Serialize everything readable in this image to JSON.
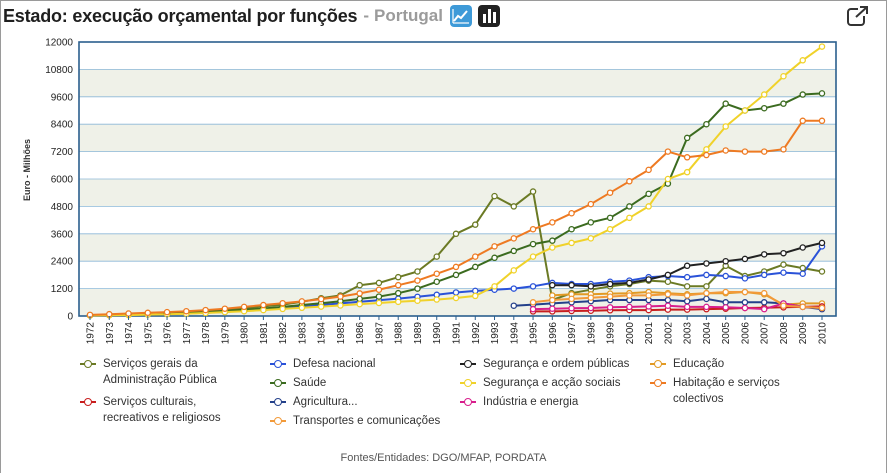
{
  "header": {
    "title": "Estado: execução orçamental por funções",
    "separator": "-",
    "subtitle": "Portugal",
    "line_chart_icon": "line-chart-icon",
    "bar_chart_icon": "bar-chart-icon",
    "expand_icon": "expand-icon"
  },
  "source": "Fontes/Entidades: DGO/MFAP, PORDATA",
  "chart_data": {
    "type": "line",
    "title": "Estado: execução orçamental por funções",
    "ylabel": "Euro - Milhões",
    "xlabel": "",
    "ylim": [
      0,
      12000
    ],
    "yticks": [
      0,
      1200,
      2400,
      3600,
      4800,
      6000,
      7200,
      8400,
      9600,
      10800,
      12000
    ],
    "categories": [
      "1972",
      "1973",
      "1974",
      "1975",
      "1976",
      "1977",
      "1978",
      "1979",
      "1980",
      "1981",
      "1982",
      "1983",
      "1984",
      "1985",
      "1986",
      "1987",
      "1988",
      "1989",
      "1990",
      "1991",
      "1992",
      "1993",
      "1994",
      "1995",
      "1996",
      "1997",
      "1998",
      "1999",
      "2000",
      "2001",
      "2002",
      "2003",
      "2004",
      "2005",
      "2006",
      "2007",
      "2008",
      "2009",
      "2010"
    ],
    "series": [
      {
        "name": "Serviços gerais da Administração Pública",
        "color": "#6b7a24",
        "values": [
          30,
          50,
          70,
          90,
          110,
          150,
          190,
          250,
          330,
          420,
          500,
          620,
          780,
          900,
          1350,
          1450,
          1700,
          1950,
          2600,
          3600,
          4000,
          5250,
          4800,
          5450,
          700,
          1000,
          1150,
          1300,
          1400,
          1550,
          1500,
          1300,
          1300,
          2200,
          1750,
          1950,
          2250,
          2100,
          1950
        ]
      },
      {
        "name": "Defesa nacional",
        "color": "#2a52d8",
        "values": [
          30,
          40,
          55,
          70,
          90,
          110,
          140,
          180,
          230,
          290,
          350,
          410,
          480,
          550,
          620,
          690,
          760,
          840,
          930,
          1030,
          1100,
          1150,
          1200,
          1300,
          1450,
          1400,
          1400,
          1500,
          1550,
          1700,
          1750,
          1700,
          1800,
          1750,
          1650,
          1800,
          1900,
          1850,
          3050
        ]
      },
      {
        "name": "Segurança e ordem públicas",
        "color": "#222222",
        "values": [
          null,
          null,
          null,
          null,
          null,
          null,
          null,
          null,
          null,
          null,
          null,
          null,
          null,
          null,
          null,
          null,
          null,
          null,
          null,
          null,
          null,
          null,
          null,
          null,
          1350,
          1350,
          1300,
          1400,
          1450,
          1600,
          1800,
          2200,
          2300,
          2400,
          2500,
          2700,
          2750,
          3000,
          3200
        ]
      },
      {
        "name": "Educação",
        "color": "#e29a24",
        "values": [
          null,
          null,
          null,
          null,
          null,
          null,
          null,
          null,
          null,
          null,
          null,
          null,
          null,
          null,
          null,
          null,
          null,
          null,
          null,
          null,
          null,
          null,
          null,
          null,
          900,
          950,
          950,
          980,
          1000,
          1050,
          1000,
          950,
          1000,
          1000,
          1050,
          950,
          500,
          550,
          550
        ]
      },
      {
        "name": "Saúde",
        "color": "#3b6b1f",
        "values": [
          30,
          40,
          60,
          80,
          100,
          130,
          170,
          220,
          270,
          330,
          400,
          480,
          560,
          650,
          750,
          850,
          1000,
          1200,
          1500,
          1800,
          2150,
          2550,
          2850,
          3150,
          3300,
          3800,
          4100,
          4300,
          4800,
          5350,
          5800,
          7800,
          8400,
          9300,
          9000,
          9100,
          9300,
          9700,
          9750
        ]
      },
      {
        "name": "Segurança e acção sociais",
        "color": "#f0d22a",
        "values": [
          20,
          30,
          40,
          60,
          80,
          100,
          130,
          170,
          210,
          260,
          310,
          360,
          410,
          460,
          520,
          570,
          620,
          670,
          720,
          790,
          880,
          1300,
          2000,
          2600,
          3000,
          3200,
          3400,
          3800,
          4300,
          4800,
          6000,
          6300,
          7300,
          8300,
          9000,
          9700,
          10500,
          11200,
          11800
        ]
      },
      {
        "name": "Habitação e serviços colectivos",
        "color": "#ee7a22",
        "values": [
          50,
          80,
          110,
          140,
          170,
          210,
          260,
          320,
          400,
          480,
          560,
          640,
          740,
          850,
          990,
          1150,
          1350,
          1550,
          1850,
          2150,
          2600,
          3050,
          3400,
          3800,
          4100,
          4500,
          4900,
          5400,
          5900,
          6400,
          7200,
          6950,
          7050,
          7250,
          7200,
          7200,
          7300,
          8550,
          8550
        ]
      },
      {
        "name": "Serviços culturais, recreativos e religiosos",
        "color": "#c81e1e",
        "values": [
          null,
          null,
          null,
          null,
          null,
          null,
          null,
          null,
          null,
          null,
          null,
          null,
          null,
          null,
          null,
          null,
          null,
          null,
          null,
          null,
          null,
          null,
          null,
          200,
          200,
          220,
          230,
          250,
          260,
          260,
          280,
          280,
          300,
          320,
          350,
          360,
          380,
          400,
          420
        ]
      },
      {
        "name": "Agricultura...",
        "color": "#24408a",
        "values": [
          null,
          null,
          null,
          null,
          null,
          null,
          null,
          null,
          null,
          null,
          null,
          null,
          null,
          null,
          null,
          null,
          null,
          null,
          null,
          null,
          null,
          null,
          450,
          500,
          550,
          600,
          650,
          700,
          700,
          700,
          700,
          650,
          750,
          600,
          600,
          600,
          550,
          400,
          300
        ]
      },
      {
        "name": "Indústria e energia",
        "color": "#d81e8c",
        "values": [
          null,
          null,
          null,
          null,
          null,
          null,
          null,
          null,
          null,
          null,
          null,
          null,
          null,
          null,
          null,
          null,
          null,
          null,
          null,
          null,
          null,
          null,
          null,
          300,
          320,
          340,
          350,
          380,
          400,
          420,
          450,
          400,
          400,
          380,
          350,
          300,
          550,
          400,
          350
        ]
      },
      {
        "name": "Transportes e comunicações",
        "color": "#f29a3a",
        "values": [
          null,
          null,
          null,
          null,
          null,
          null,
          null,
          null,
          null,
          null,
          null,
          null,
          null,
          null,
          null,
          null,
          null,
          null,
          null,
          null,
          null,
          null,
          null,
          600,
          700,
          750,
          800,
          850,
          900,
          900,
          950,
          900,
          1000,
          1050,
          1050,
          1000,
          450,
          400,
          350
        ]
      }
    ],
    "legend": [
      {
        "label": "Serviços gerais da Administração Pública",
        "color": "#6b7a24"
      },
      {
        "label": "Defesa nacional",
        "color": "#2a52d8"
      },
      {
        "label": "Segurança e ordem públicas",
        "color": "#222222"
      },
      {
        "label": "Educação",
        "color": "#e29a24"
      },
      {
        "label": "Saúde",
        "color": "#3b6b1f"
      },
      {
        "label": "Segurança e acção sociais",
        "color": "#f0d22a"
      },
      {
        "label": "Habitação e serviços colectivos",
        "color": "#ee7a22"
      },
      {
        "label": "Serviços culturais, recreativos e religiosos",
        "color": "#c81e1e"
      },
      {
        "label": "Agricultura...",
        "color": "#24408a"
      },
      {
        "label": "Indústria e energia",
        "color": "#d81e8c"
      },
      {
        "label": "Transportes e comunicações",
        "color": "#f29a3a"
      }
    ]
  }
}
